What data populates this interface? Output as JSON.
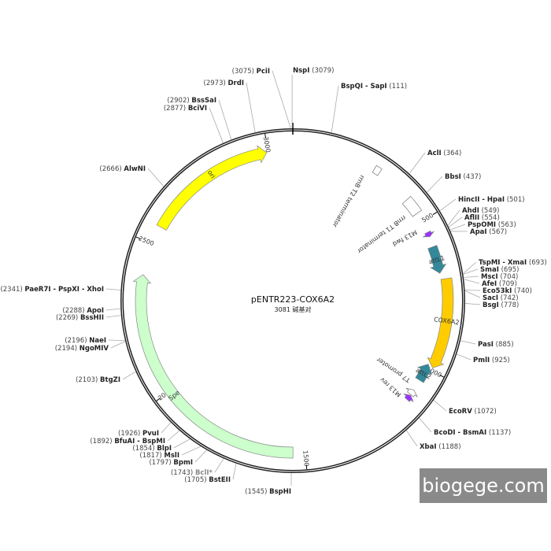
{
  "plasmid": {
    "name": "pENTR223-COX6A2",
    "size_label": "3081 碱基对",
    "length": 3081
  },
  "watermark": "biogege.com",
  "ticks": [
    500,
    1000,
    1500,
    2000,
    2500,
    3000
  ],
  "features": [
    {
      "name": "ori",
      "start": 2560,
      "end": 2995,
      "direction": "forward",
      "color": "#ffff00"
    },
    {
      "name": "Spe",
      "start": 1540,
      "end": 2395,
      "direction": "forward",
      "color": "#ccffcc"
    },
    {
      "name": "COX6A2",
      "start": 700,
      "end": 990,
      "direction": "forward",
      "color": "#ffcc00"
    },
    {
      "name": "attL1",
      "start": 590,
      "end": 680,
      "direction": "forward",
      "color": "#33889a"
    },
    {
      "name": "attL2",
      "start": 985,
      "end": 1045,
      "direction": "reverse",
      "color": "#33889a"
    },
    {
      "name": "M13 fwd",
      "start": 540,
      "end": 556,
      "direction": "forward",
      "color": "#9933ff"
    },
    {
      "name": "M13 rev",
      "start": 1102,
      "end": 1120,
      "direction": "reverse",
      "color": "#9933ff"
    },
    {
      "name": "T7 promoter",
      "start": 1082,
      "end": 1100,
      "direction": "reverse",
      "color": "#ffffff"
    },
    {
      "name": "rrnB T2 terminator",
      "start": 272,
      "end": 292,
      "direction": "none",
      "color": "#ffffff"
    },
    {
      "name": "rrnB T1 terminator",
      "start": 415,
      "end": 470,
      "direction": "none",
      "color": "#ffffff"
    }
  ],
  "enzymes": [
    {
      "name": "NspI",
      "pos": 3079
    },
    {
      "name": "BspQI - SapI",
      "pos": 111
    },
    {
      "name": "AclI",
      "pos": 364
    },
    {
      "name": "BbsI",
      "pos": 437
    },
    {
      "name": "HincII - HpaI",
      "pos": 501
    },
    {
      "name": "AhdI",
      "pos": 549
    },
    {
      "name": "AflII",
      "pos": 554
    },
    {
      "name": "PspOMI",
      "pos": 563
    },
    {
      "name": "ApaI",
      "pos": 567
    },
    {
      "name": "TspMI - XmaI",
      "pos": 693
    },
    {
      "name": "SmaI",
      "pos": 695
    },
    {
      "name": "MscI",
      "pos": 704
    },
    {
      "name": "AfeI",
      "pos": 709
    },
    {
      "name": "Eco53kI",
      "pos": 740
    },
    {
      "name": "SacI",
      "pos": 742
    },
    {
      "name": "BsgI",
      "pos": 778
    },
    {
      "name": "PasI",
      "pos": 885
    },
    {
      "name": "PmlI",
      "pos": 925
    },
    {
      "name": "EcoRV",
      "pos": 1072
    },
    {
      "name": "BcoDI - BsmAI",
      "pos": 1137
    },
    {
      "name": "XbaI",
      "pos": 1188
    },
    {
      "name": "BspHI",
      "pos": 1545
    },
    {
      "name": "BstEII",
      "pos": 1705
    },
    {
      "name": "BclI*",
      "pos": 1743,
      "muted": true
    },
    {
      "name": "BpmI",
      "pos": 1797
    },
    {
      "name": "MslI",
      "pos": 1817
    },
    {
      "name": "BlpI",
      "pos": 1854
    },
    {
      "name": "BfuAI - BspMI",
      "pos": 1892
    },
    {
      "name": "PvuI",
      "pos": 1926
    },
    {
      "name": "BtgZI",
      "pos": 2103
    },
    {
      "name": "NgoMIV",
      "pos": 2194
    },
    {
      "name": "NaeI",
      "pos": 2196
    },
    {
      "name": "BssHII",
      "pos": 2269
    },
    {
      "name": "ApoI",
      "pos": 2288
    },
    {
      "name": "PaeR7I - PspXI - XhoI",
      "pos": 2341
    },
    {
      "name": "AlwNI",
      "pos": 2666
    },
    {
      "name": "BciVI",
      "pos": 2877
    },
    {
      "name": "BssSaI",
      "pos": 2902
    },
    {
      "name": "DrdI",
      "pos": 2973
    },
    {
      "name": "PciI",
      "pos": 3075
    }
  ]
}
